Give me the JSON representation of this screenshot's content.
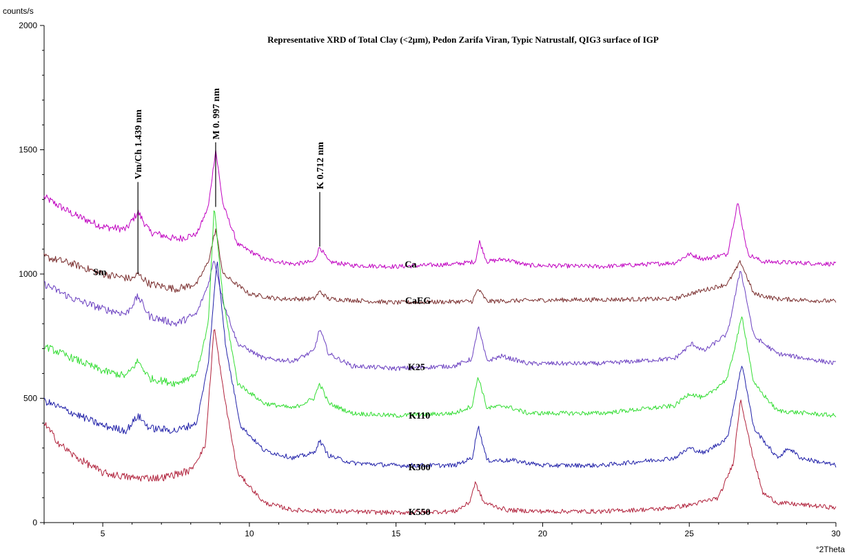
{
  "chart_data": {
    "type": "line",
    "title": "Representative XRD of Total Clay (<2µm), Pedon Zarifa Viran, Typic Natrustalf, QIG3 surface of IGP",
    "ylabel": "counts/s",
    "xlabel": "°2Theta",
    "xlim": [
      3,
      30
    ],
    "ylim": [
      0,
      2000
    ],
    "x_ticks": [
      5,
      10,
      15,
      20,
      25,
      30
    ],
    "y_ticks": [
      0,
      500,
      1000,
      1500,
      2000
    ],
    "grid": false,
    "legend": "none",
    "series": [
      {
        "name": "Ca",
        "color": "#c000c0",
        "points": [
          [
            3.0,
            1310
          ],
          [
            4.0,
            1240
          ],
          [
            5.0,
            1190
          ],
          [
            5.8,
            1180
          ],
          [
            6.2,
            1250
          ],
          [
            6.6,
            1170
          ],
          [
            7.5,
            1140
          ],
          [
            8.2,
            1160
          ],
          [
            8.6,
            1270
          ],
          [
            8.85,
            1500
          ],
          [
            9.1,
            1280
          ],
          [
            9.6,
            1120
          ],
          [
            10.5,
            1060
          ],
          [
            11.5,
            1040
          ],
          [
            12.2,
            1050
          ],
          [
            12.4,
            1110
          ],
          [
            12.7,
            1050
          ],
          [
            13.5,
            1035
          ],
          [
            15.0,
            1030
          ],
          [
            17.0,
            1040
          ],
          [
            17.7,
            1050
          ],
          [
            17.85,
            1130
          ],
          [
            18.1,
            1050
          ],
          [
            18.7,
            1060
          ],
          [
            19.5,
            1035
          ],
          [
            22.0,
            1030
          ],
          [
            24.5,
            1045
          ],
          [
            25.0,
            1080
          ],
          [
            25.5,
            1060
          ],
          [
            26.3,
            1080
          ],
          [
            26.65,
            1290
          ],
          [
            27.0,
            1080
          ],
          [
            27.5,
            1050
          ],
          [
            30.0,
            1040
          ]
        ]
      },
      {
        "name": "CaEG",
        "color": "#7a2e2e",
        "points": [
          [
            3.0,
            1070
          ],
          [
            4.0,
            1040
          ],
          [
            5.0,
            1000
          ],
          [
            6.0,
            980
          ],
          [
            6.2,
            1000
          ],
          [
            6.6,
            960
          ],
          [
            7.5,
            940
          ],
          [
            8.2,
            960
          ],
          [
            8.6,
            1050
          ],
          [
            8.85,
            1180
          ],
          [
            9.1,
            1000
          ],
          [
            10.0,
            920
          ],
          [
            11.0,
            900
          ],
          [
            12.2,
            900
          ],
          [
            12.4,
            930
          ],
          [
            12.7,
            900
          ],
          [
            15.0,
            885
          ],
          [
            17.6,
            890
          ],
          [
            17.8,
            940
          ],
          [
            18.1,
            890
          ],
          [
            20.0,
            895
          ],
          [
            24.5,
            900
          ],
          [
            25.0,
            920
          ],
          [
            26.3,
            960
          ],
          [
            26.75,
            1050
          ],
          [
            27.2,
            920
          ],
          [
            28.0,
            900
          ],
          [
            30.0,
            890
          ]
        ]
      },
      {
        "name": "K25",
        "color": "#6a3fc0",
        "points": [
          [
            3.0,
            960
          ],
          [
            4.0,
            900
          ],
          [
            5.0,
            860
          ],
          [
            5.8,
            840
          ],
          [
            6.2,
            910
          ],
          [
            6.6,
            830
          ],
          [
            7.5,
            800
          ],
          [
            8.2,
            840
          ],
          [
            8.6,
            960
          ],
          [
            8.8,
            1060
          ],
          [
            9.1,
            890
          ],
          [
            9.6,
            720
          ],
          [
            10.5,
            660
          ],
          [
            11.5,
            650
          ],
          [
            12.2,
            690
          ],
          [
            12.4,
            780
          ],
          [
            12.7,
            680
          ],
          [
            13.5,
            630
          ],
          [
            15.0,
            620
          ],
          [
            17.0,
            630
          ],
          [
            17.6,
            660
          ],
          [
            17.8,
            790
          ],
          [
            18.1,
            650
          ],
          [
            18.6,
            670
          ],
          [
            19.5,
            640
          ],
          [
            22.0,
            640
          ],
          [
            24.5,
            660
          ],
          [
            25.1,
            720
          ],
          [
            25.5,
            690
          ],
          [
            26.3,
            760
          ],
          [
            26.75,
            1020
          ],
          [
            27.2,
            750
          ],
          [
            28.0,
            680
          ],
          [
            30.0,
            640
          ]
        ]
      },
      {
        "name": "K110",
        "color": "#33dd33",
        "points": [
          [
            3.0,
            710
          ],
          [
            4.0,
            660
          ],
          [
            5.0,
            610
          ],
          [
            5.8,
            590
          ],
          [
            6.2,
            650
          ],
          [
            6.6,
            580
          ],
          [
            7.5,
            560
          ],
          [
            8.2,
            600
          ],
          [
            8.6,
            800
          ],
          [
            8.8,
            1270
          ],
          [
            9.1,
            900
          ],
          [
            9.6,
            560
          ],
          [
            10.5,
            480
          ],
          [
            11.5,
            460
          ],
          [
            12.2,
            500
          ],
          [
            12.4,
            560
          ],
          [
            12.7,
            480
          ],
          [
            13.5,
            440
          ],
          [
            15.0,
            430
          ],
          [
            17.0,
            440
          ],
          [
            17.6,
            470
          ],
          [
            17.8,
            590
          ],
          [
            18.1,
            460
          ],
          [
            18.7,
            470
          ],
          [
            19.5,
            440
          ],
          [
            22.0,
            440
          ],
          [
            24.5,
            470
          ],
          [
            25.0,
            520
          ],
          [
            25.5,
            500
          ],
          [
            26.3,
            580
          ],
          [
            26.8,
            830
          ],
          [
            27.2,
            560
          ],
          [
            28.0,
            450
          ],
          [
            30.0,
            430
          ]
        ]
      },
      {
        "name": "K300",
        "color": "#1f1fa8",
        "points": [
          [
            3.0,
            490
          ],
          [
            4.0,
            440
          ],
          [
            5.0,
            390
          ],
          [
            5.8,
            370
          ],
          [
            6.2,
            430
          ],
          [
            6.6,
            380
          ],
          [
            7.5,
            370
          ],
          [
            8.2,
            400
          ],
          [
            8.6,
            640
          ],
          [
            8.9,
            1060
          ],
          [
            9.2,
            700
          ],
          [
            9.7,
            390
          ],
          [
            10.5,
            290
          ],
          [
            11.5,
            260
          ],
          [
            12.2,
            280
          ],
          [
            12.4,
            330
          ],
          [
            12.7,
            270
          ],
          [
            13.5,
            240
          ],
          [
            15.0,
            230
          ],
          [
            17.0,
            230
          ],
          [
            17.6,
            260
          ],
          [
            17.8,
            390
          ],
          [
            18.1,
            250
          ],
          [
            19.0,
            250
          ],
          [
            20.0,
            230
          ],
          [
            22.0,
            230
          ],
          [
            24.5,
            260
          ],
          [
            25.0,
            300
          ],
          [
            25.5,
            280
          ],
          [
            26.3,
            340
          ],
          [
            26.8,
            640
          ],
          [
            27.2,
            380
          ],
          [
            28.0,
            260
          ],
          [
            28.4,
            300
          ],
          [
            28.8,
            260
          ],
          [
            30.0,
            230
          ]
        ]
      },
      {
        "name": "K550",
        "color": "#b0203a",
        "points": [
          [
            3.0,
            400
          ],
          [
            3.5,
            320
          ],
          [
            4.0,
            270
          ],
          [
            5.0,
            200
          ],
          [
            6.0,
            180
          ],
          [
            7.0,
            180
          ],
          [
            8.0,
            210
          ],
          [
            8.5,
            310
          ],
          [
            8.8,
            790
          ],
          [
            9.1,
            540
          ],
          [
            9.6,
            200
          ],
          [
            10.5,
            80
          ],
          [
            11.5,
            50
          ],
          [
            13.0,
            45
          ],
          [
            15.0,
            40
          ],
          [
            17.0,
            45
          ],
          [
            17.5,
            80
          ],
          [
            17.7,
            160
          ],
          [
            18.0,
            80
          ],
          [
            18.8,
            50
          ],
          [
            20.0,
            45
          ],
          [
            22.0,
            45
          ],
          [
            24.0,
            55
          ],
          [
            25.0,
            70
          ],
          [
            26.0,
            100
          ],
          [
            26.5,
            240
          ],
          [
            26.75,
            500
          ],
          [
            27.1,
            300
          ],
          [
            27.5,
            120
          ],
          [
            28.0,
            80
          ],
          [
            30.0,
            60
          ]
        ]
      }
    ],
    "series_labels": [
      {
        "text": "Ca",
        "x": 15.5,
        "y": 1040
      },
      {
        "text": "CaEG",
        "x": 15.75,
        "y": 895
      },
      {
        "text": "K25",
        "x": 15.7,
        "y": 628
      },
      {
        "text": "K110",
        "x": 15.8,
        "y": 432
      },
      {
        "text": "K300",
        "x": 15.8,
        "y": 225
      },
      {
        "text": "K550",
        "x": 15.8,
        "y": 44
      },
      {
        "text": "Sm",
        "x": 4.9,
        "y": 1010
      }
    ],
    "peak_annotations": [
      {
        "text": "Vm/Ch 1.439 nm",
        "x": 6.2,
        "y_top": 1370,
        "y_bottom": 1000
      },
      {
        "text": "M 0. 997 nm",
        "x": 8.85,
        "y_top": 1530,
        "y_bottom": 1270
      },
      {
        "text": "K 0.712 nm",
        "x": 12.4,
        "y_top": 1330,
        "y_bottom": 1110
      }
    ]
  }
}
